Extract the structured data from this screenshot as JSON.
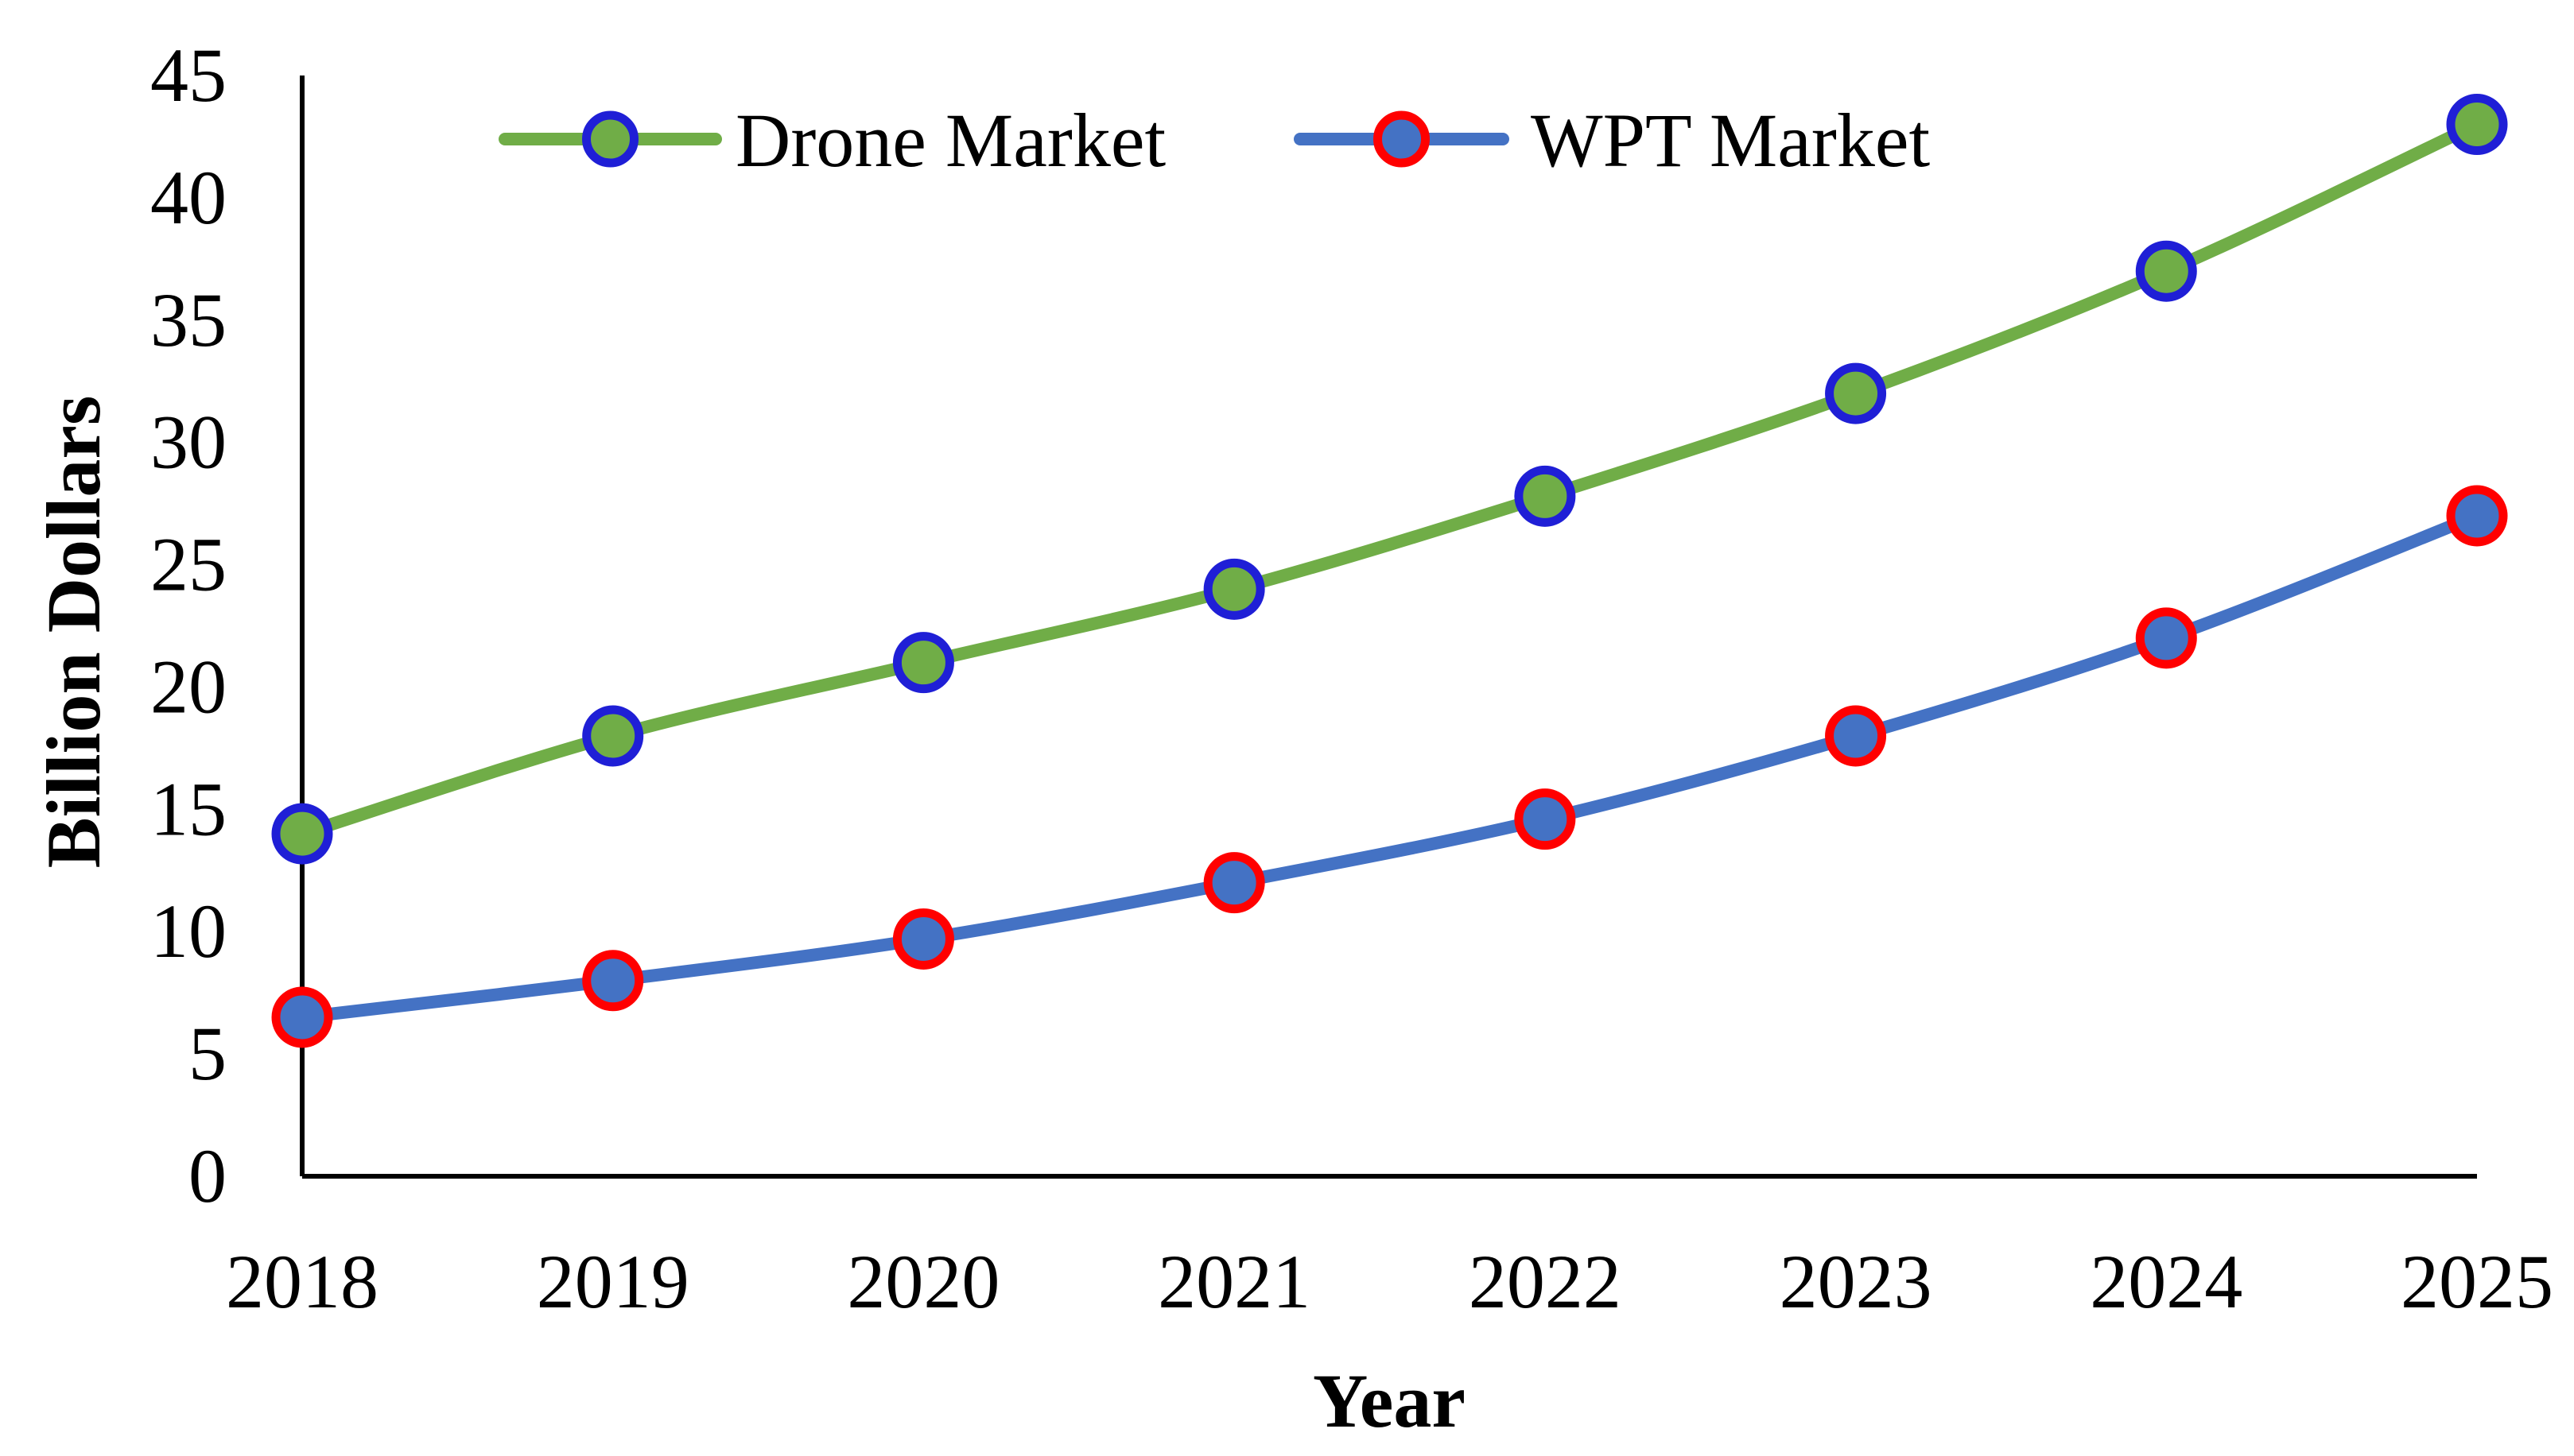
{
  "chart_data": {
    "type": "line",
    "title": "",
    "xlabel": "Year",
    "ylabel": "Billion Dollars",
    "categories": [
      "2018",
      "2019",
      "2020",
      "2021",
      "2022",
      "2023",
      "2024",
      "2025"
    ],
    "ylim": [
      0,
      45
    ],
    "yticks": [
      "0",
      "5",
      "10",
      "15",
      "20",
      "25",
      "30",
      "35",
      "40",
      "45"
    ],
    "grid": false,
    "legend_position": "top",
    "series": [
      {
        "name": "Drone Market",
        "values": [
          14,
          18,
          21,
          24,
          27.8,
          32,
          37,
          43
        ],
        "line_color": "#70ad47",
        "marker_fill": "#70ad47",
        "marker_edge": "#1f1fd6"
      },
      {
        "name": "WPT Market",
        "values": [
          6.5,
          8,
          9.7,
          12,
          14.6,
          18,
          22,
          27
        ],
        "line_color": "#4472c4",
        "marker_fill": "#4472c4",
        "marker_edge": "#ff0000"
      }
    ]
  }
}
